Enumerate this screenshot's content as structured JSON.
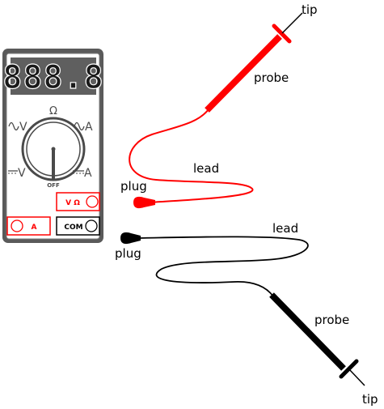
{
  "meter": {
    "display": "888.8",
    "dial_top": "Ω",
    "dial_ac_v": "V",
    "dial_ac_a": "A",
    "dial_dc_v": "V",
    "dial_dc_a": "A",
    "dial_off": "OFF",
    "jack_vohm": "V Ω",
    "jack_a": "A",
    "jack_com": "COM"
  },
  "red_lead": {
    "tip_label": "tip",
    "probe_label": "probe",
    "lead_label": "lead",
    "plug_label": "plug",
    "color": "#ff0000"
  },
  "black_lead": {
    "tip_label": "tip",
    "probe_label": "probe",
    "lead_label": "lead",
    "plug_label": "plug",
    "color": "#000000"
  },
  "colors": {
    "meter_body": "#5a5a5a",
    "meter_face": "#ffffff",
    "display_bg": "#5f5f5f",
    "jack_outline": "#ff0000"
  }
}
